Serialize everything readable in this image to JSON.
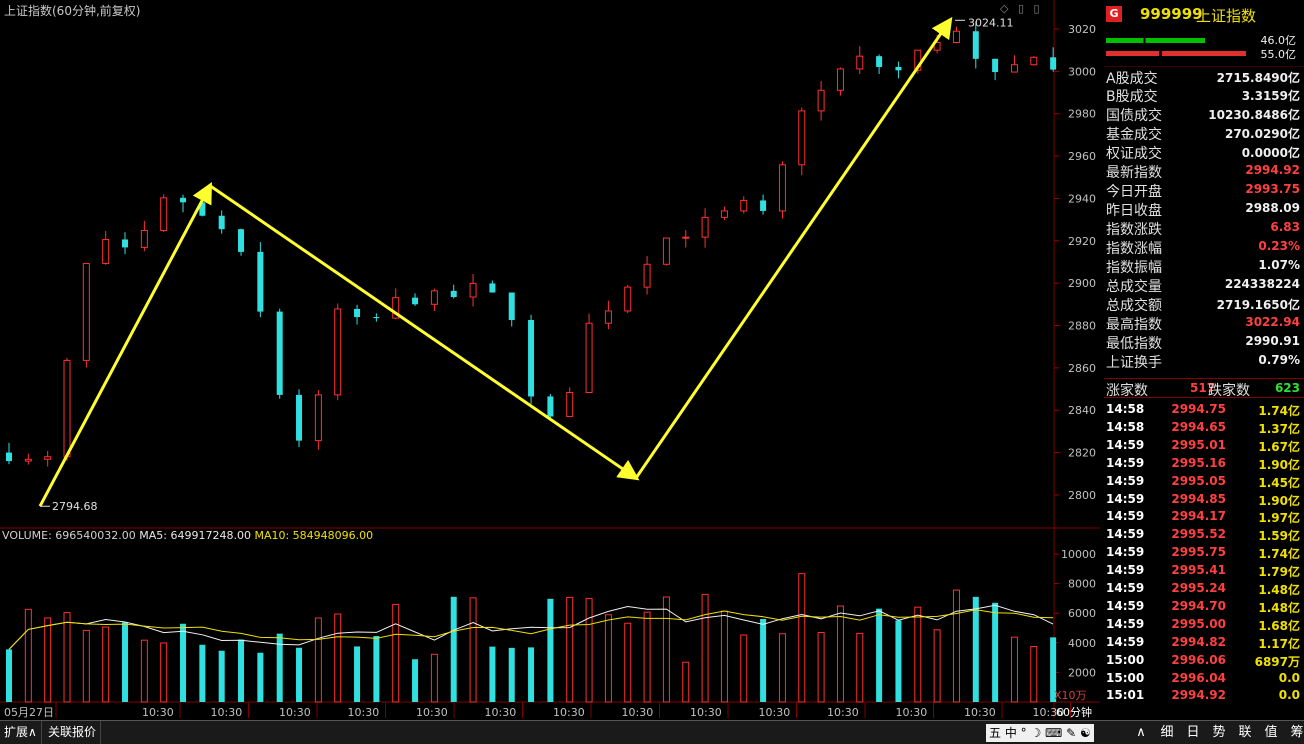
{
  "header": {
    "title": "上证指数(60分钟,前复权)",
    "window_icons": "◇ ▯ ▯"
  },
  "volume_label": {
    "volume": "VOLUME: 696540032.00",
    "ma5": "MA5: 649917248.00",
    "ma10": "MA10: 584948096.00"
  },
  "price_axis_labels": [
    "3020",
    "3000",
    "2980",
    "2960",
    "2940",
    "2920",
    "2900",
    "2880",
    "2860",
    "2840",
    "2820",
    "2800"
  ],
  "volume_axis_labels": [
    "10000",
    "8000",
    "6000",
    "4000",
    "2000"
  ],
  "volume_unit": "X10万",
  "timeframe_tag": "60分钟",
  "x_labels": [
    "05月27日",
    "10:30",
    "10:30",
    "10:30",
    "10:30",
    "10:30",
    "10:30",
    "10:30",
    "10:30",
    "10:30",
    "10:30",
    "10:30",
    "10:30",
    "10:30",
    "10:30",
    "10:30"
  ],
  "annotations": {
    "low_label": "2794.68",
    "high_label": "3024.11"
  },
  "colors": {
    "up": "#ff3030",
    "down": "#30e0e0",
    "arrow": "#ffff30",
    "grid": "#800000"
  },
  "chart_data": {
    "type": "candlestick",
    "ylim": [
      2790,
      3030
    ],
    "low_marker": 2794.68,
    "high_marker": 3024.11,
    "trend_arrows": [
      [
        2794.68,
        2946
      ],
      [
        2946,
        2808
      ],
      [
        2808,
        3024.11
      ]
    ]
  },
  "panel": {
    "badge": "G",
    "code": "999999",
    "name": "上证指数",
    "bar1_amount": "46.0亿",
    "bar2_amount": "55.0亿",
    "bar1_fraction": 0.84,
    "bar2_fraction": 1.0,
    "stats": [
      {
        "label": "A股成交",
        "value": "2715.8490亿",
        "color": "white"
      },
      {
        "label": "B股成交",
        "value": "3.3159亿",
        "color": "white"
      },
      {
        "label": "国债成交",
        "value": "10230.8486亿",
        "color": "white"
      },
      {
        "label": "基金成交",
        "value": "270.0290亿",
        "color": "white"
      },
      {
        "label": "权证成交",
        "value": "0.0000亿",
        "color": "white"
      },
      {
        "label": "最新指数",
        "value": "2994.92",
        "color": "red"
      },
      {
        "label": "今日开盘",
        "value": "2993.75",
        "color": "red"
      },
      {
        "label": "昨日收盘",
        "value": "2988.09",
        "color": "white"
      },
      {
        "label": "指数涨跌",
        "value": "6.83",
        "color": "red"
      },
      {
        "label": "指数涨幅",
        "value": "0.23%",
        "color": "red"
      },
      {
        "label": "指数振幅",
        "value": "1.07%",
        "color": "white"
      },
      {
        "label": "总成交量",
        "value": "224338224",
        "color": "white"
      },
      {
        "label": "总成交额",
        "value": "2719.1650亿",
        "color": "white"
      },
      {
        "label": "最高指数",
        "value": "3022.94",
        "color": "red"
      },
      {
        "label": "最低指数",
        "value": "2990.91",
        "color": "white"
      },
      {
        "label": "上证换手",
        "value": "0.79%",
        "color": "white"
      }
    ],
    "breadth": {
      "up_label": "涨家数",
      "up_count": "517",
      "down_label": "跌家数",
      "down_count": "623"
    },
    "ticks": [
      {
        "t": "14:58",
        "p": "2994.75",
        "q": "1.74亿"
      },
      {
        "t": "14:58",
        "p": "2994.65",
        "q": "1.37亿"
      },
      {
        "t": "14:59",
        "p": "2995.01",
        "q": "1.67亿"
      },
      {
        "t": "14:59",
        "p": "2995.16",
        "q": "1.90亿"
      },
      {
        "t": "14:59",
        "p": "2995.05",
        "q": "1.45亿"
      },
      {
        "t": "14:59",
        "p": "2994.85",
        "q": "1.90亿"
      },
      {
        "t": "14:59",
        "p": "2994.17",
        "q": "1.97亿"
      },
      {
        "t": "14:59",
        "p": "2995.52",
        "q": "1.59亿"
      },
      {
        "t": "14:59",
        "p": "2995.75",
        "q": "1.74亿"
      },
      {
        "t": "14:59",
        "p": "2995.41",
        "q": "1.79亿"
      },
      {
        "t": "14:59",
        "p": "2995.24",
        "q": "1.48亿"
      },
      {
        "t": "14:59",
        "p": "2994.70",
        "q": "1.48亿"
      },
      {
        "t": "14:59",
        "p": "2995.00",
        "q": "1.68亿"
      },
      {
        "t": "14:59",
        "p": "2994.82",
        "q": "1.17亿"
      },
      {
        "t": "15:00",
        "p": "2996.06",
        "q": "6897万"
      },
      {
        "t": "15:00",
        "p": "2996.04",
        "q": "0.0"
      },
      {
        "t": "15:01",
        "p": "2994.92",
        "q": "0.0"
      }
    ]
  },
  "status": {
    "expand": "扩展∧",
    "related": "关联报价",
    "ime": "五 中 ° ☽ ⌨ ✎ ☯",
    "buttons": [
      "∧",
      "细",
      "日",
      "势",
      "联",
      "值",
      "筹"
    ]
  }
}
